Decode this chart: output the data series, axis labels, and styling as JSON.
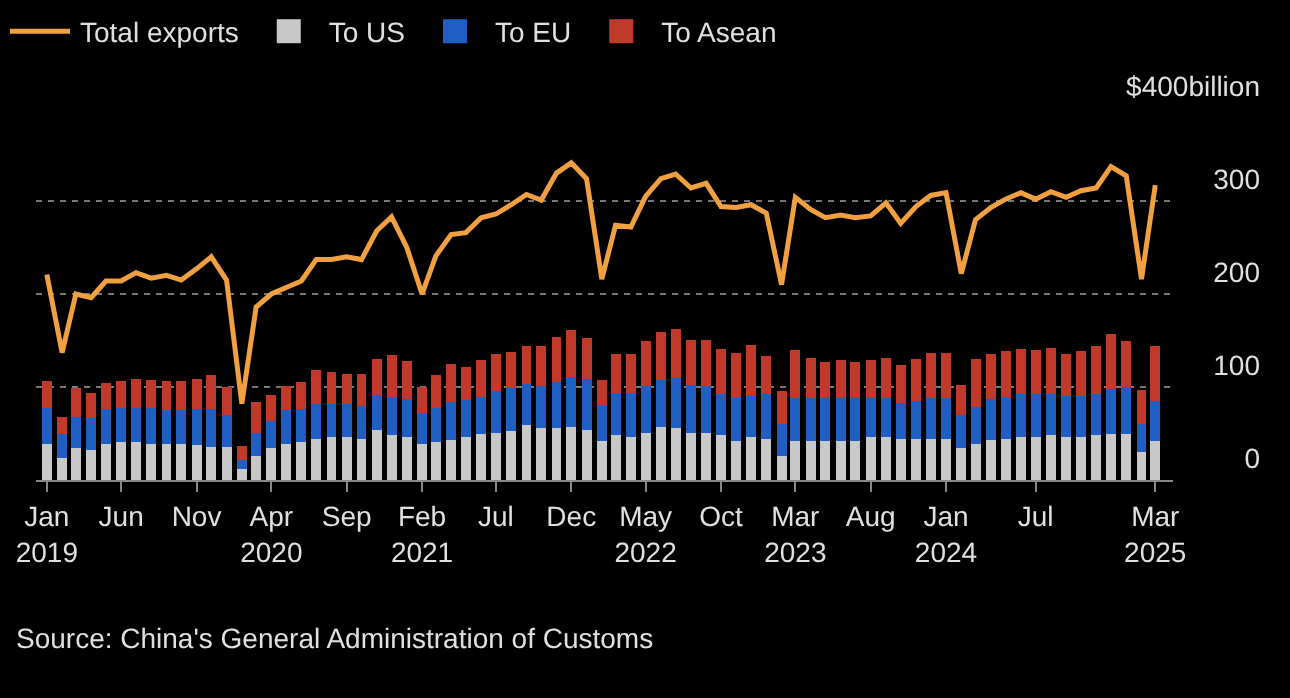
{
  "chart_data": {
    "type": "bar",
    "stacked": true,
    "grid": "y",
    "legend": "top left",
    "annotations": [
      "Source: China's General Administration of Customs"
    ],
    "x": [
      "2019-01",
      "2019-02",
      "2019-03",
      "2019-04",
      "2019-05",
      "2019-06",
      "2019-07",
      "2019-08",
      "2019-09",
      "2019-10",
      "2019-11",
      "2019-12",
      "2020-01",
      "2020-02",
      "2020-03",
      "2020-04",
      "2020-05",
      "2020-06",
      "2020-07",
      "2020-08",
      "2020-09",
      "2020-10",
      "2020-11",
      "2020-12",
      "2021-01",
      "2021-02",
      "2021-03",
      "2021-04",
      "2021-05",
      "2021-06",
      "2021-07",
      "2021-08",
      "2021-09",
      "2021-10",
      "2021-11",
      "2021-12",
      "2022-01",
      "2022-02",
      "2022-03",
      "2022-04",
      "2022-05",
      "2022-06",
      "2022-07",
      "2022-08",
      "2022-09",
      "2022-10",
      "2022-11",
      "2022-12",
      "2023-01",
      "2023-02",
      "2023-03",
      "2023-04",
      "2023-05",
      "2023-06",
      "2023-07",
      "2023-08",
      "2023-09",
      "2023-10",
      "2023-11",
      "2023-12",
      "2024-01",
      "2024-02",
      "2024-03",
      "2024-04",
      "2024-05",
      "2024-06",
      "2024-07",
      "2024-08",
      "2024-09",
      "2024-10",
      "2024-11",
      "2024-12",
      "2025-01",
      "2025-02",
      "2025-03"
    ],
    "xlim": [
      "2018-12-10",
      "2025-04-05"
    ],
    "xticks": [
      {
        "value": "2019-01",
        "label": "Jan\n2019"
      },
      {
        "value": "2019-06",
        "label": "Jun"
      },
      {
        "value": "2019-11",
        "label": "Nov"
      },
      {
        "value": "2020-04",
        "label": "Apr\n2020"
      },
      {
        "value": "2020-09",
        "label": "Sep"
      },
      {
        "value": "2021-02",
        "label": "Feb\n2021"
      },
      {
        "value": "2021-07",
        "label": "Jul"
      },
      {
        "value": "2021-12",
        "label": "Dec"
      },
      {
        "value": "2022-05",
        "label": "May\n2022"
      },
      {
        "value": "2022-10",
        "label": "Oct"
      },
      {
        "value": "2023-03",
        "label": "Mar\n2023"
      },
      {
        "value": "2023-08",
        "label": "Aug"
      },
      {
        "value": "2024-01",
        "label": "Jan\n2024"
      },
      {
        "value": "2024-07",
        "label": "Jul"
      },
      {
        "value": "2025-03",
        "label": "Mar\n2025"
      }
    ],
    "ylim": [
      0,
      400
    ],
    "yticks": [
      0,
      100,
      200,
      300,
      {
        "value": 400,
        "label": "$400billion"
      }
    ],
    "series": [
      {
        "name": "Total exports",
        "type": "line",
        "color": "#f0a040",
        "values": [
          221,
          137,
          200,
          196,
          214,
          214,
          223,
          217,
          220,
          215,
          227,
          240,
          215,
          82,
          186,
          200,
          207,
          214,
          237,
          237,
          240,
          237,
          268,
          283,
          250,
          200,
          241,
          264,
          266,
          282,
          286,
          296,
          307,
          301,
          330,
          341,
          324,
          216,
          274,
          272,
          305,
          324,
          329,
          314,
          319,
          294,
          293,
          296,
          287,
          210,
          304,
          291,
          282,
          285,
          282,
          284,
          298,
          276,
          294,
          306,
          309,
          222,
          280,
          293,
          302,
          309,
          302,
          310,
          304,
          311,
          314,
          337,
          327,
          216,
          317
        ]
      },
      {
        "name": "To US",
        "color": "#c8c8c8",
        "values": [
          39,
          24,
          34,
          32,
          39,
          41,
          41,
          39,
          39,
          39,
          38,
          36,
          36,
          12,
          26,
          34,
          39,
          41,
          44,
          46,
          46,
          44,
          54,
          48,
          46,
          39,
          41,
          43,
          46,
          49,
          51,
          53,
          59,
          56,
          56,
          57,
          54,
          42,
          48,
          46,
          51,
          57,
          56,
          51,
          51,
          48,
          42,
          46,
          44,
          26,
          42,
          42,
          42,
          42,
          42,
          46,
          46,
          44,
          44,
          44,
          44,
          34,
          39,
          43,
          44,
          46,
          46,
          48,
          46,
          46,
          48,
          50,
          49,
          30,
          42
        ]
      },
      {
        "name": "To EU",
        "color": "#1f5fc4",
        "values": [
          38,
          26,
          34,
          35,
          37,
          36,
          36,
          38,
          36,
          36,
          38,
          40,
          34,
          9,
          25,
          29,
          36,
          35,
          38,
          36,
          36,
          36,
          37,
          41,
          41,
          33,
          36,
          41,
          40,
          40,
          45,
          46,
          44,
          45,
          49,
          54,
          55,
          39,
          46,
          48,
          50,
          51,
          54,
          51,
          50,
          45,
          46,
          45,
          48,
          34,
          46,
          46,
          46,
          46,
          46,
          42,
          42,
          39,
          41,
          44,
          44,
          36,
          40,
          44,
          45,
          46,
          46,
          45,
          44,
          44,
          45,
          48,
          51,
          30,
          43
        ]
      },
      {
        "name": "To Asean",
        "color": "#c0392b",
        "values": [
          30,
          18,
          31,
          27,
          28,
          30,
          32,
          31,
          31,
          31,
          33,
          37,
          30,
          16,
          33,
          28,
          26,
          29,
          36,
          34,
          32,
          34,
          39,
          45,
          41,
          28,
          36,
          41,
          36,
          40,
          39,
          39,
          41,
          43,
          49,
          50,
          44,
          27,
          41,
          41,
          49,
          51,
          52,
          49,
          50,
          48,
          49,
          54,
          41,
          36,
          52,
          43,
          39,
          41,
          39,
          41,
          43,
          41,
          45,
          49,
          49,
          32,
          51,
          49,
          50,
          49,
          48,
          49,
          46,
          49,
          51,
          59,
          49,
          37,
          59
        ]
      }
    ]
  }
}
